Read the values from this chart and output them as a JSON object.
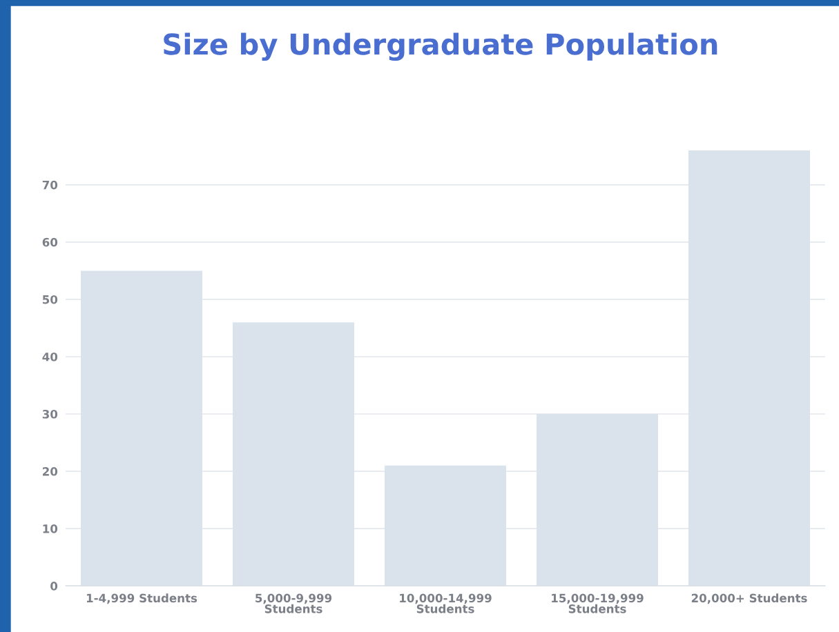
{
  "chart_data": {
    "type": "bar",
    "title": "Size by Undergraduate Population",
    "categories": [
      "1-4,999 Students",
      "5,000-9,999\nStudents",
      "10,000-14,999\nStudents",
      "15,000-19,999\nStudents",
      "20,000+ Students"
    ],
    "values": [
      55,
      46,
      21,
      30,
      76
    ],
    "color": "#dae3ec",
    "ylim": [
      0,
      76
    ],
    "yticks": [
      0,
      10,
      20,
      30,
      40,
      50,
      60,
      70
    ],
    "grid": "y",
    "legend": false
  }
}
